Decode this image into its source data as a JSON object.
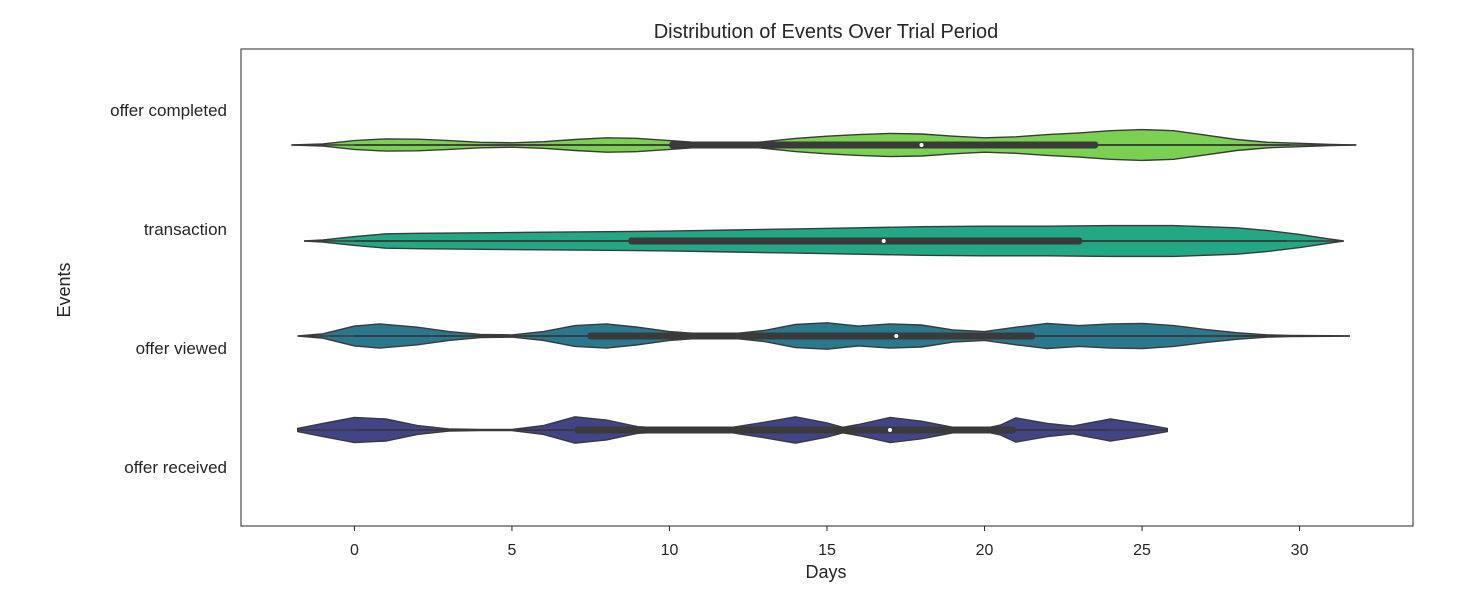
{
  "chart_data": {
    "type": "violin",
    "title": "Distribution of Events Over Trial Period",
    "xlabel": "Days",
    "ylabel": "Events",
    "xlim": [
      -3.6,
      33.6
    ],
    "xticks": [
      0,
      5,
      10,
      15,
      20,
      25,
      30
    ],
    "categories": [
      "offer completed",
      "transaction",
      "offer viewed",
      "offer received"
    ],
    "grid": false,
    "colors": {
      "offer completed": "#7ad151",
      "transaction": "#22a884",
      "offer viewed": "#2a788e",
      "offer received": "#414487"
    },
    "series": [
      {
        "name": "offer completed",
        "range": [
          -2,
          31.8
        ],
        "box": {
          "q1": 10,
          "median": 18,
          "q3": 23.6,
          "whisker_low": 0,
          "whisker_high": 29.7
        },
        "density": [
          [
            -2,
            0
          ],
          [
            -1,
            0.2
          ],
          [
            0,
            0.8
          ],
          [
            1,
            1.1
          ],
          [
            2,
            1.05
          ],
          [
            3,
            0.8
          ],
          [
            4,
            0.5
          ],
          [
            5,
            0.4
          ],
          [
            6,
            0.6
          ],
          [
            7,
            1.0
          ],
          [
            8,
            1.3
          ],
          [
            9,
            1.2
          ],
          [
            10,
            0.8
          ],
          [
            11,
            0.4
          ],
          [
            12,
            0.2
          ],
          [
            13,
            0.6
          ],
          [
            14,
            1.2
          ],
          [
            15,
            1.6
          ],
          [
            16,
            1.9
          ],
          [
            17,
            2.1
          ],
          [
            18,
            2.0
          ],
          [
            19,
            1.6
          ],
          [
            20,
            1.3
          ],
          [
            21,
            1.5
          ],
          [
            22,
            1.9
          ],
          [
            23,
            2.2
          ],
          [
            24,
            2.6
          ],
          [
            25,
            2.8
          ],
          [
            26,
            2.6
          ],
          [
            27,
            1.8
          ],
          [
            28,
            1.0
          ],
          [
            29,
            0.5
          ],
          [
            30,
            0.3
          ],
          [
            31,
            0.1
          ],
          [
            31.8,
            0
          ]
        ]
      },
      {
        "name": "transaction",
        "range": [
          -1.6,
          31.4
        ],
        "box": {
          "q1": 8.7,
          "median": 16.8,
          "q3": 23.1,
          "whisker_low": 0,
          "whisker_high": 29.6
        },
        "density": [
          [
            -1.6,
            0
          ],
          [
            -1,
            0.2
          ],
          [
            0,
            0.8
          ],
          [
            1,
            1.3
          ],
          [
            2,
            1.4
          ],
          [
            4,
            1.5
          ],
          [
            6,
            1.6
          ],
          [
            8,
            1.7
          ],
          [
            10,
            1.8
          ],
          [
            12,
            2.0
          ],
          [
            14,
            2.2
          ],
          [
            16,
            2.4
          ],
          [
            18,
            2.6
          ],
          [
            20,
            2.7
          ],
          [
            22,
            2.7
          ],
          [
            24,
            2.8
          ],
          [
            26,
            2.8
          ],
          [
            28,
            2.4
          ],
          [
            29,
            1.9
          ],
          [
            30,
            1.2
          ],
          [
            30.8,
            0.5
          ],
          [
            31.4,
            0
          ]
        ]
      },
      {
        "name": "offer viewed",
        "range": [
          -1.8,
          31.6
        ],
        "box": {
          "q1": 7.4,
          "median": 17.2,
          "q3": 21.6,
          "whisker_low": 0,
          "whisker_high": 29.7
        },
        "density": [
          [
            -1.8,
            0
          ],
          [
            -1,
            0.4
          ],
          [
            0,
            1.8
          ],
          [
            0.8,
            2.2
          ],
          [
            2,
            1.6
          ],
          [
            3,
            0.8
          ],
          [
            4,
            0.3
          ],
          [
            5,
            0.2
          ],
          [
            6,
            0.8
          ],
          [
            7,
            1.9
          ],
          [
            8,
            2.2
          ],
          [
            9,
            1.6
          ],
          [
            10,
            0.8
          ],
          [
            11,
            0.4
          ],
          [
            12,
            0.4
          ],
          [
            13,
            1.0
          ],
          [
            14,
            2.1
          ],
          [
            15,
            2.4
          ],
          [
            16,
            1.8
          ],
          [
            17,
            2.2
          ],
          [
            18,
            2.0
          ],
          [
            19,
            1.1
          ],
          [
            20,
            0.8
          ],
          [
            21,
            1.6
          ],
          [
            22,
            2.3
          ],
          [
            23,
            1.9
          ],
          [
            24,
            2.2
          ],
          [
            25,
            2.3
          ],
          [
            26,
            1.9
          ],
          [
            27,
            1.2
          ],
          [
            28,
            0.6
          ],
          [
            29,
            0.2
          ],
          [
            29.7,
            0.1
          ],
          [
            31,
            0.05
          ],
          [
            31.6,
            0
          ]
        ]
      },
      {
        "name": "offer received",
        "range": [
          -1.8,
          25.8
        ],
        "box": {
          "q1": 7,
          "median": 17,
          "q3": 21,
          "whisker_low": 0,
          "whisker_high": 24
        },
        "density": [
          [
            -1.8,
            0.3
          ],
          [
            -1,
            1.2
          ],
          [
            0,
            2.3
          ],
          [
            1,
            2.0
          ],
          [
            2,
            0.8
          ],
          [
            3,
            0.2
          ],
          [
            4,
            0.1
          ],
          [
            5,
            0.1
          ],
          [
            6,
            0.8
          ],
          [
            7,
            2.4
          ],
          [
            8,
            1.8
          ],
          [
            9,
            0.6
          ],
          [
            10,
            0.3
          ],
          [
            11,
            0.3
          ],
          [
            12,
            0.5
          ],
          [
            13,
            1.4
          ],
          [
            14,
            2.4
          ],
          [
            15,
            1.3
          ],
          [
            15.5,
            0.5
          ],
          [
            16,
            1.0
          ],
          [
            17,
            2.3
          ],
          [
            18,
            1.6
          ],
          [
            19,
            0.5
          ],
          [
            20,
            0.3
          ],
          [
            20.5,
            0.9
          ],
          [
            21,
            2.2
          ],
          [
            22,
            1.2
          ],
          [
            22.8,
            0.7
          ],
          [
            24,
            2.0
          ],
          [
            25,
            1.1
          ],
          [
            25.8,
            0.3
          ]
        ]
      }
    ]
  }
}
